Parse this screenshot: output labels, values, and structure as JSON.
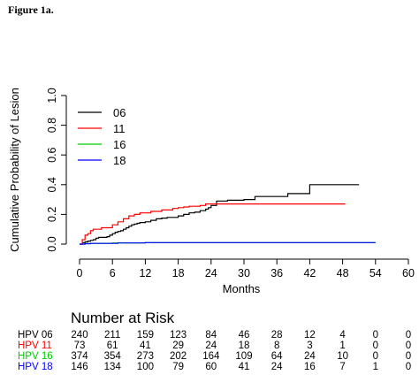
{
  "figure_label": "Figure 1a.",
  "chart_data": {
    "type": "line",
    "step": true,
    "ylabel": "Cumulative Probability of Lesion",
    "xlabel": "Months",
    "xlim": [
      0,
      60
    ],
    "ylim": [
      0,
      1.0
    ],
    "xticks": [
      "0",
      "6",
      "12",
      "18",
      "24",
      "30",
      "36",
      "42",
      "48",
      "54",
      "60"
    ],
    "yticks": [
      "0.0",
      "0.2",
      "0.4",
      "0.6",
      "0.8",
      "1.0"
    ],
    "legend_position": "top-left",
    "series": [
      {
        "name": "06",
        "color": "#000000",
        "points": [
          [
            0,
            0
          ],
          [
            0.5,
            0.01
          ],
          [
            1,
            0.015
          ],
          [
            1.5,
            0.02
          ],
          [
            2,
            0.025
          ],
          [
            2.5,
            0.03
          ],
          [
            3,
            0.04
          ],
          [
            3.5,
            0.045
          ],
          [
            5,
            0.05
          ],
          [
            5.5,
            0.06
          ],
          [
            6,
            0.07
          ],
          [
            6.5,
            0.08
          ],
          [
            7,
            0.085
          ],
          [
            7.5,
            0.09
          ],
          [
            8,
            0.1
          ],
          [
            8.5,
            0.11
          ],
          [
            9,
            0.12
          ],
          [
            9.5,
            0.13
          ],
          [
            10,
            0.135
          ],
          [
            10.5,
            0.14
          ],
          [
            11,
            0.145
          ],
          [
            12,
            0.15
          ],
          [
            13,
            0.16
          ],
          [
            14,
            0.17
          ],
          [
            15,
            0.175
          ],
          [
            16,
            0.18
          ],
          [
            18,
            0.19
          ],
          [
            19,
            0.2
          ],
          [
            20,
            0.21
          ],
          [
            21,
            0.215
          ],
          [
            22,
            0.225
          ],
          [
            23,
            0.235
          ],
          [
            23.5,
            0.245
          ],
          [
            24,
            0.26
          ],
          [
            25,
            0.29
          ],
          [
            27,
            0.295
          ],
          [
            30,
            0.3
          ],
          [
            32,
            0.32
          ],
          [
            38,
            0.34
          ],
          [
            42,
            0.4
          ],
          [
            47,
            0.4
          ],
          [
            51,
            0.4
          ]
        ]
      },
      {
        "name": "11",
        "color": "#ff0000",
        "points": [
          [
            0,
            0
          ],
          [
            0.5,
            0.03
          ],
          [
            1,
            0.06
          ],
          [
            1.5,
            0.07
          ],
          [
            2,
            0.09
          ],
          [
            2.5,
            0.1
          ],
          [
            4,
            0.11
          ],
          [
            6,
            0.13
          ],
          [
            7,
            0.15
          ],
          [
            8,
            0.17
          ],
          [
            9,
            0.19
          ],
          [
            10,
            0.2
          ],
          [
            11,
            0.21
          ],
          [
            13,
            0.22
          ],
          [
            15,
            0.23
          ],
          [
            17,
            0.24
          ],
          [
            18,
            0.245
          ],
          [
            19,
            0.25
          ],
          [
            20,
            0.255
          ],
          [
            22,
            0.26
          ],
          [
            23,
            0.27
          ],
          [
            25,
            0.27
          ],
          [
            48.5,
            0.27
          ]
        ]
      },
      {
        "name": "16",
        "color": "#00cc00",
        "points": [
          [
            0,
            0
          ],
          [
            1,
            0.003
          ],
          [
            2,
            0.005
          ],
          [
            6,
            0.008
          ],
          [
            12,
            0.01
          ],
          [
            24,
            0.01
          ],
          [
            54,
            0.01
          ]
        ]
      },
      {
        "name": "18",
        "color": "#0000ff",
        "points": [
          [
            0,
            0
          ],
          [
            1,
            0.003
          ],
          [
            2,
            0.005
          ],
          [
            7,
            0.008
          ],
          [
            12,
            0.01
          ],
          [
            24,
            0.01
          ],
          [
            54,
            0.01
          ]
        ]
      }
    ]
  },
  "risk_table": {
    "title": "Number at Risk",
    "rows": [
      {
        "label": "HPV 06",
        "color": "#000000",
        "values": [
          "240",
          "211",
          "159",
          "123",
          "84",
          "46",
          "28",
          "12",
          "4",
          "0",
          "0"
        ]
      },
      {
        "label": "HPV 11",
        "color": "#ff0000",
        "values": [
          "73",
          "61",
          "41",
          "29",
          "24",
          "18",
          "8",
          "3",
          "1",
          "0",
          "0"
        ]
      },
      {
        "label": "HPV 16",
        "color": "#00cc00",
        "values": [
          "374",
          "354",
          "273",
          "202",
          "164",
          "109",
          "64",
          "24",
          "10",
          "0",
          "0"
        ]
      },
      {
        "label": "HPV 18",
        "color": "#0000ff",
        "values": [
          "146",
          "134",
          "100",
          "79",
          "60",
          "41",
          "24",
          "16",
          "7",
          "1",
          "0"
        ]
      }
    ]
  }
}
